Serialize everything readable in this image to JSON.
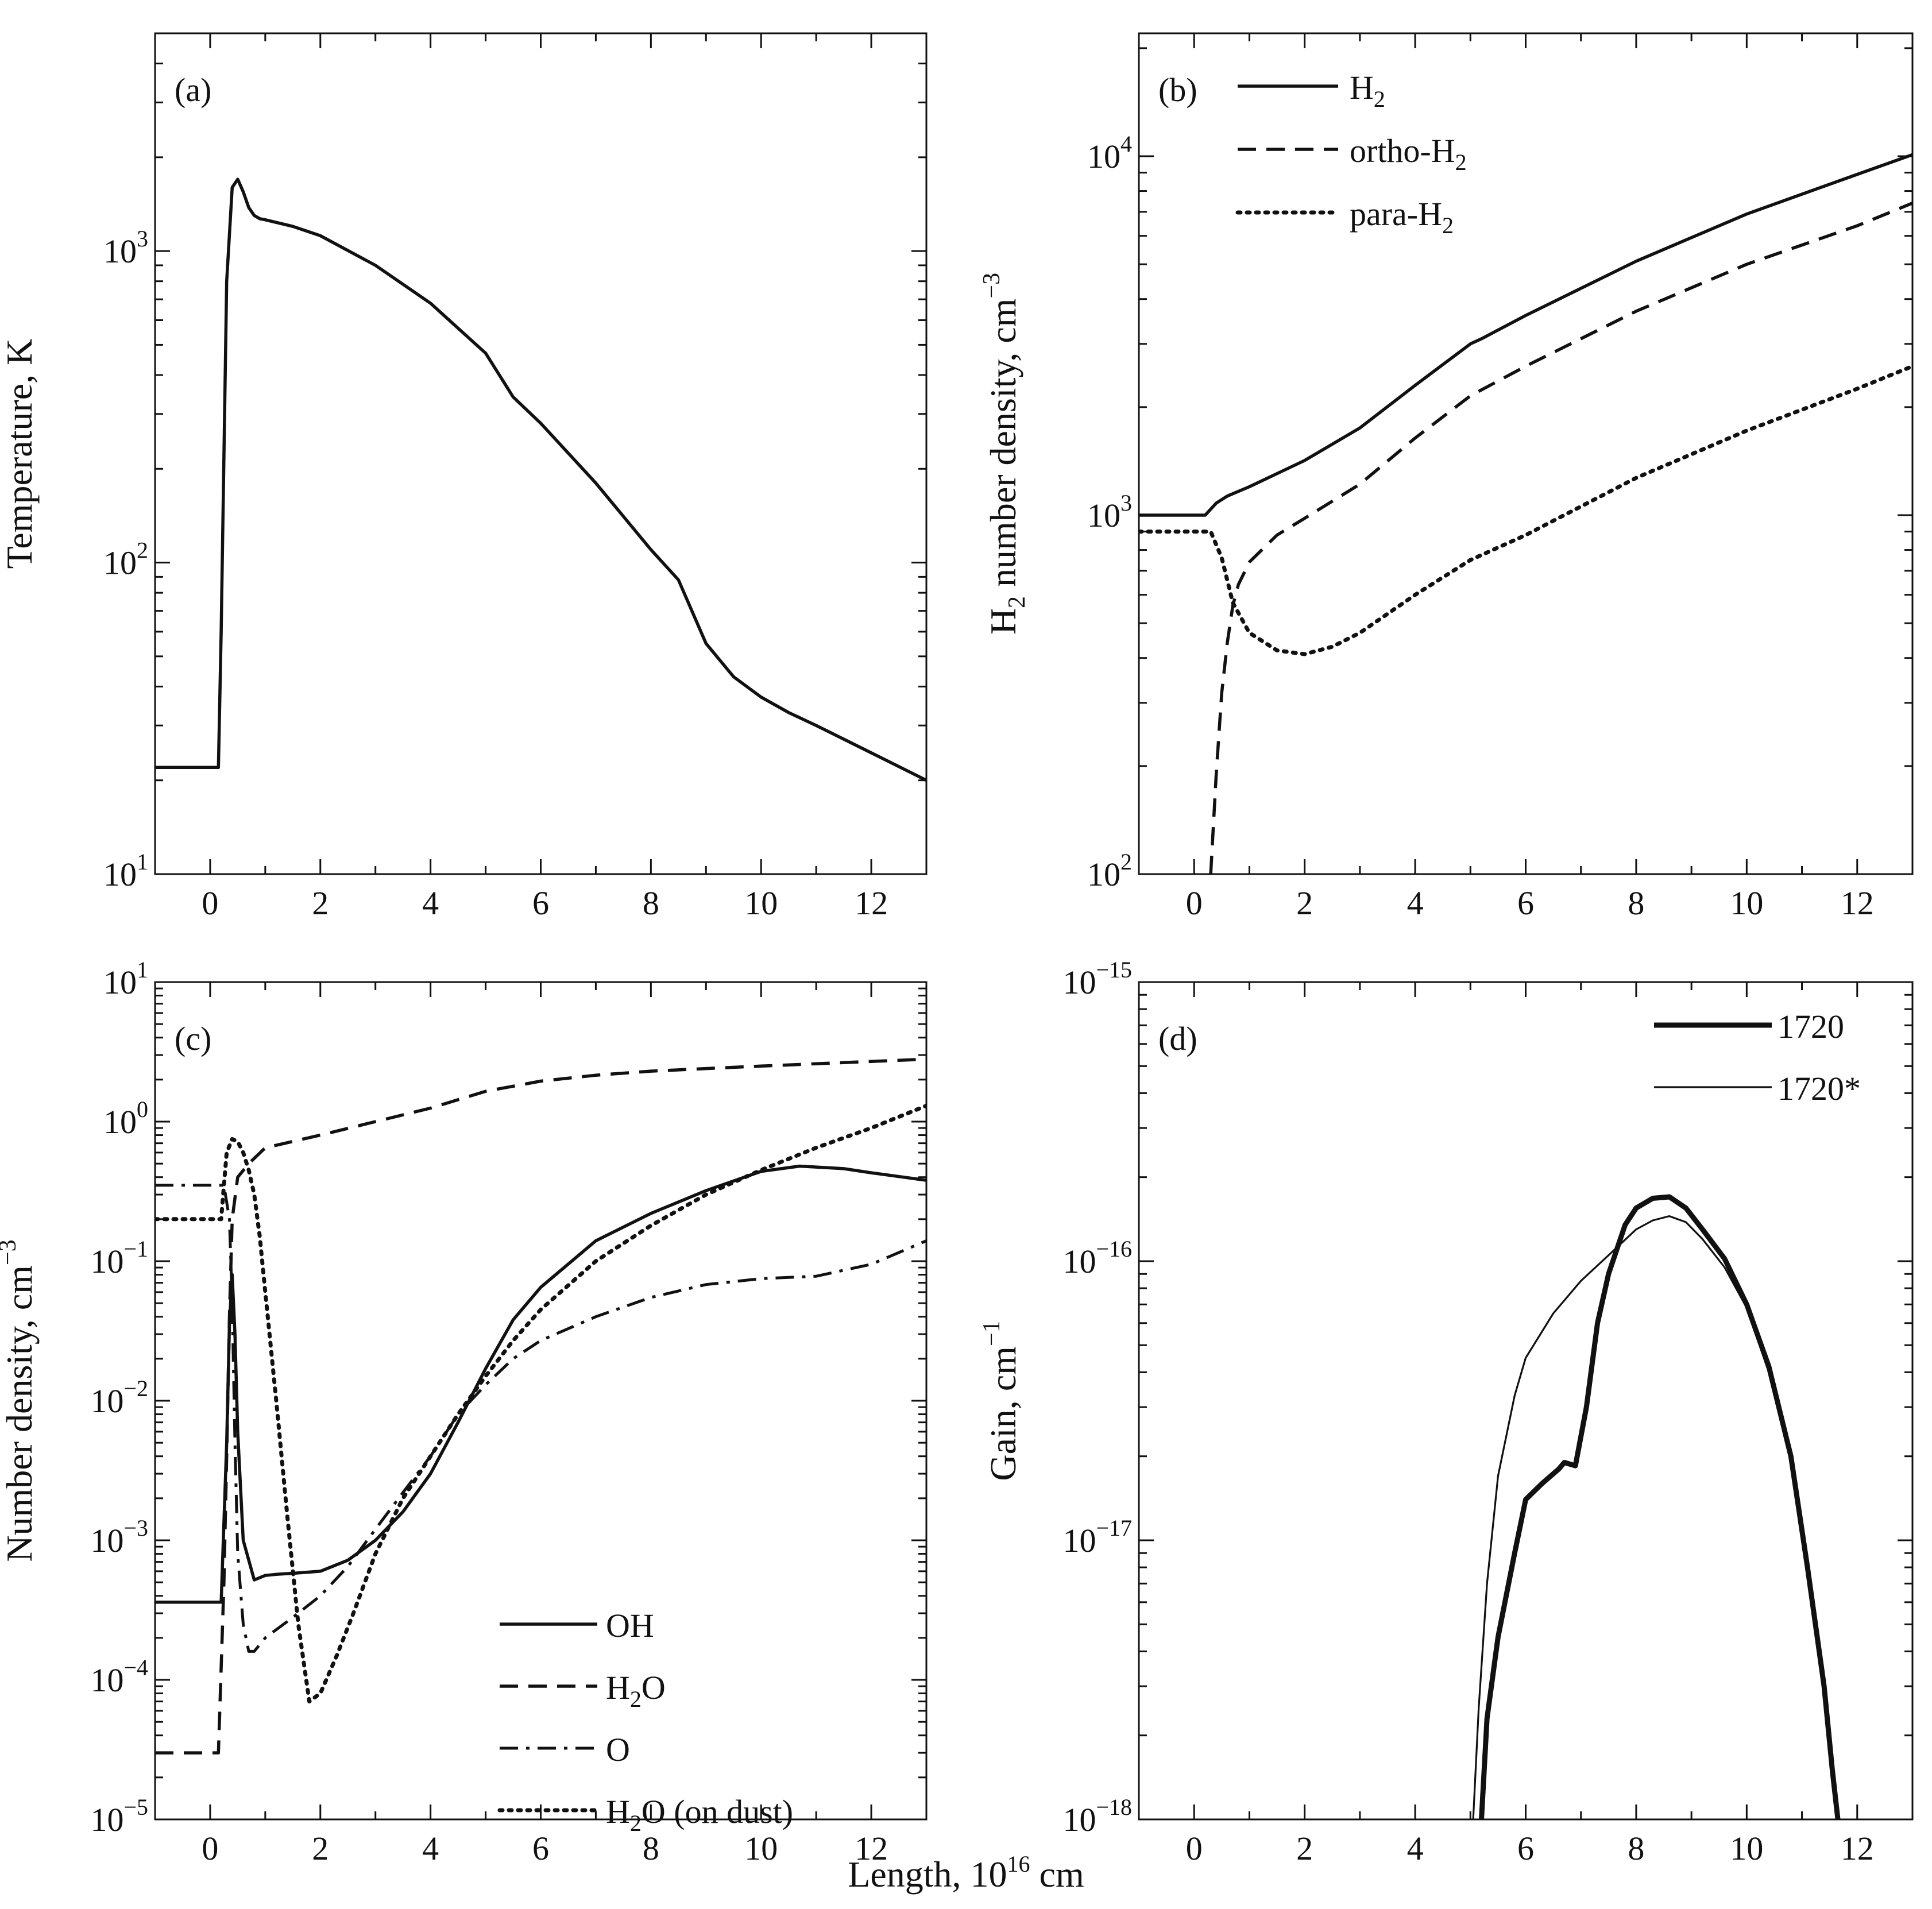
{
  "figure": {
    "xlabel_main": "Length, 10",
    "xlabel_sup": "16",
    "xlabel_unit": " cm"
  },
  "chart_data": [
    {
      "panel": "(a)",
      "type": "line",
      "yscale": "log",
      "xlim": [
        -1,
        13
      ],
      "ylim": [
        10,
        5000
      ],
      "xticks": [
        0,
        2,
        4,
        6,
        8,
        10,
        12
      ],
      "xtick_labels": [
        "0",
        "2",
        "4",
        "6",
        "8",
        "10",
        "12"
      ],
      "yticks": [
        10,
        100,
        1000
      ],
      "ytick_labels": [
        {
          "base": "10",
          "exp": "1"
        },
        {
          "base": "10",
          "exp": "2"
        },
        {
          "base": "10",
          "exp": "3"
        }
      ],
      "ylabel": {
        "pre": "Temperature, K",
        "sub": "",
        "post": "",
        "sup": ""
      },
      "legend": [],
      "series": [
        {
          "name": "Temperature",
          "style": "solid",
          "x": [
            -1,
            0.15,
            0.2,
            0.3,
            0.4,
            0.5,
            0.6,
            0.7,
            0.8,
            0.9,
            1.0,
            1.5,
            2.0,
            3.0,
            4.0,
            5.0,
            5.5,
            6.0,
            7.0,
            8.0,
            8.5,
            9.0,
            9.5,
            10.0,
            10.5,
            11.0,
            12.0,
            13.0
          ],
          "y": [
            22,
            22,
            60,
            800,
            1600,
            1700,
            1550,
            1380,
            1300,
            1270,
            1260,
            1200,
            1120,
            900,
            680,
            470,
            340,
            280,
            180,
            110,
            88,
            55,
            43,
            37,
            33,
            30,
            24.5,
            20
          ]
        }
      ]
    },
    {
      "panel": "(b)",
      "type": "line",
      "yscale": "log",
      "xlim": [
        -1,
        13
      ],
      "ylim": [
        100,
        22000
      ],
      "xticks": [
        0,
        2,
        4,
        6,
        8,
        10,
        12
      ],
      "xtick_labels": [
        "0",
        "2",
        "4",
        "6",
        "8",
        "10",
        "12"
      ],
      "yticks": [
        100,
        1000,
        10000
      ],
      "ytick_labels": [
        {
          "base": "10",
          "exp": "2"
        },
        {
          "base": "10",
          "exp": "3"
        },
        {
          "base": "10",
          "exp": "4"
        }
      ],
      "ylabel": {
        "pre": "H",
        "sub": "2",
        "post": " number density, cm",
        "sup": "−3"
      },
      "legend": [
        {
          "style": "solid",
          "pre": "H",
          "sub": "2",
          "post": ""
        },
        {
          "style": "dashed",
          "pre": "ortho-H",
          "sub": "2",
          "post": ""
        },
        {
          "style": "dotted",
          "pre": "para-H",
          "sub": "2",
          "post": ""
        }
      ],
      "series": [
        {
          "name": "H2",
          "style": "solid",
          "x": [
            -1,
            0.2,
            0.4,
            0.6,
            1.0,
            2.0,
            3.0,
            4.0,
            5.0,
            5.2,
            6.0,
            8.0,
            10.0,
            12.0,
            13.0
          ],
          "y": [
            1000,
            1000,
            1080,
            1130,
            1200,
            1420,
            1750,
            2300,
            3000,
            3100,
            3600,
            5100,
            6900,
            8900,
            10100
          ]
        },
        {
          "name": "ortho-H2",
          "style": "dashed",
          "x": [
            0.3,
            0.4,
            0.5,
            0.6,
            0.7,
            0.8,
            1.0,
            1.5,
            2.0,
            3.0,
            4.0,
            5.0,
            6.0,
            8.0,
            10.0,
            12.0,
            13.0
          ],
          "y": [
            100,
            190,
            320,
            440,
            560,
            640,
            740,
            880,
            980,
            1220,
            1640,
            2150,
            2600,
            3700,
            5000,
            6400,
            7400
          ]
        },
        {
          "name": "para-H2",
          "style": "dotted",
          "x": [
            -1,
            0.2,
            0.3,
            0.5,
            0.7,
            1.0,
            1.5,
            2.0,
            2.5,
            3.0,
            4.0,
            5.0,
            6.0,
            8.0,
            10.0,
            12.0,
            13.0
          ],
          "y": [
            900,
            900,
            900,
            760,
            570,
            470,
            420,
            410,
            430,
            470,
            600,
            750,
            880,
            1270,
            1720,
            2250,
            2600
          ]
        }
      ]
    },
    {
      "panel": "(c)",
      "type": "line",
      "yscale": "log",
      "xlim": [
        -1,
        13
      ],
      "ylim": [
        1e-05,
        10
      ],
      "xticks": [
        0,
        2,
        4,
        6,
        8,
        10,
        12
      ],
      "xtick_labels": [
        "0",
        "2",
        "4",
        "6",
        "8",
        "10",
        "12"
      ],
      "yticks": [
        1e-05,
        0.0001,
        0.001,
        0.01,
        0.1,
        1,
        10
      ],
      "ytick_labels": [
        {
          "base": "10",
          "exp": "−5"
        },
        {
          "base": "10",
          "exp": "−4"
        },
        {
          "base": "10",
          "exp": "−3"
        },
        {
          "base": "10",
          "exp": "−2"
        },
        {
          "base": "10",
          "exp": "−1"
        },
        {
          "base": "10",
          "exp": "0"
        },
        {
          "base": "10",
          "exp": "1"
        }
      ],
      "ylabel": {
        "pre": "Number density, cm",
        "sub": "",
        "post": "",
        "sup": "−3"
      },
      "legend": [
        {
          "style": "solid",
          "pre": "OH",
          "sub": "",
          "post": ""
        },
        {
          "style": "dashed",
          "pre": "H",
          "sub": "2",
          "post": "O"
        },
        {
          "style": "dashdot",
          "pre": "O",
          "sub": "",
          "post": ""
        },
        {
          "style": "dotted",
          "pre": "H",
          "sub": "2",
          "post": "O (on dust)"
        }
      ],
      "series": [
        {
          "name": "OH",
          "style": "solid",
          "x": [
            -1,
            0.2,
            0.3,
            0.35,
            0.4,
            0.45,
            0.5,
            0.6,
            0.8,
            1.0,
            1.2,
            1.5,
            2.0,
            2.5,
            3.0,
            3.5,
            4.0,
            4.5,
            5.0,
            5.5,
            6.0,
            7.0,
            8.0,
            9.0,
            10.0,
            10.7,
            11.5,
            12.0,
            13.0
          ],
          "y": [
            0.00036,
            0.00036,
            0.005,
            0.035,
            0.08,
            0.03,
            0.006,
            0.001,
            0.00052,
            0.00056,
            0.00057,
            0.00058,
            0.0006,
            0.00072,
            0.001,
            0.0016,
            0.003,
            0.007,
            0.017,
            0.038,
            0.065,
            0.14,
            0.22,
            0.32,
            0.44,
            0.48,
            0.46,
            0.43,
            0.38
          ]
        },
        {
          "name": "H2O",
          "style": "dashed",
          "x": [
            -1,
            0.15,
            0.25,
            0.3,
            0.35,
            0.4,
            0.5,
            0.7,
            1.0,
            2.0,
            3.0,
            4.0,
            5.0,
            6.0,
            7.0,
            8.0,
            9.0,
            10.0,
            11.0,
            12.0,
            13.0
          ],
          "y": [
            3e-05,
            3e-05,
            0.0005,
            0.004,
            0.04,
            0.2,
            0.4,
            0.5,
            0.65,
            0.8,
            1.0,
            1.25,
            1.65,
            1.95,
            2.15,
            2.3,
            2.4,
            2.5,
            2.6,
            2.7,
            2.8
          ]
        },
        {
          "name": "O",
          "style": "dashdot",
          "x": [
            -1,
            0.2,
            0.25,
            0.35,
            0.4,
            0.45,
            0.5,
            0.6,
            0.7,
            0.8,
            1.0,
            1.5,
            2.0,
            2.5,
            3.0,
            3.5,
            4.0,
            4.5,
            5.0,
            5.5,
            6.0,
            7.0,
            8.0,
            9.0,
            10.0,
            11.0,
            12.0,
            13.0
          ],
          "y": [
            0.35,
            0.35,
            0.35,
            0.2,
            0.05,
            0.005,
            0.0008,
            0.00025,
            0.00016,
            0.00016,
            0.0002,
            0.00028,
            0.0004,
            0.00065,
            0.0012,
            0.0022,
            0.004,
            0.008,
            0.013,
            0.02,
            0.027,
            0.04,
            0.055,
            0.068,
            0.075,
            0.078,
            0.095,
            0.14
          ]
        },
        {
          "name": "H2O (on dust)",
          "style": "dotted",
          "x": [
            -1,
            0.2,
            0.25,
            0.3,
            0.4,
            0.5,
            0.6,
            0.7,
            0.8,
            0.9,
            1.0,
            1.2,
            1.4,
            1.6,
            1.8,
            2.0,
            2.3,
            2.6,
            3.0,
            3.5,
            4.0,
            4.5,
            5.0,
            5.5,
            6.0,
            7.0,
            8.0,
            9.0,
            10.0,
            11.0,
            12.0,
            13.0
          ],
          "y": [
            0.2,
            0.2,
            0.35,
            0.6,
            0.75,
            0.72,
            0.6,
            0.45,
            0.3,
            0.15,
            0.06,
            0.01,
            0.0015,
            0.00025,
            7e-05,
            8e-05,
            0.00015,
            0.0003,
            0.0008,
            0.002,
            0.004,
            0.008,
            0.015,
            0.027,
            0.045,
            0.1,
            0.18,
            0.3,
            0.45,
            0.65,
            0.9,
            1.3
          ]
        }
      ]
    },
    {
      "panel": "(d)",
      "type": "line",
      "yscale": "log",
      "xlim": [
        -1,
        13
      ],
      "ylim": [
        1e-18,
        1e-15
      ],
      "xticks": [
        0,
        2,
        4,
        6,
        8,
        10,
        12
      ],
      "xtick_labels": [
        "0",
        "2",
        "4",
        "6",
        "8",
        "10",
        "12"
      ],
      "yticks": [
        1e-18,
        1e-17,
        1e-16,
        1e-15
      ],
      "ytick_labels": [
        {
          "base": "10",
          "exp": "−18"
        },
        {
          "base": "10",
          "exp": "−17"
        },
        {
          "base": "10",
          "exp": "−16"
        },
        {
          "base": "10",
          "exp": "−15"
        }
      ],
      "ylabel": {
        "pre": "Gain, cm",
        "sub": "",
        "post": "",
        "sup": "−1"
      },
      "legend": [
        {
          "style": "thick",
          "pre": "1720",
          "sub": "",
          "post": ""
        },
        {
          "style": "thin",
          "pre": "1720*",
          "sub": "",
          "post": ""
        }
      ],
      "series": [
        {
          "name": "1720",
          "style": "thick",
          "x": [
            5.2,
            5.3,
            5.5,
            5.8,
            6.0,
            6.3,
            6.6,
            6.7,
            6.9,
            7.1,
            7.3,
            7.5,
            7.8,
            8.0,
            8.3,
            8.6,
            8.9,
            9.2,
            9.6,
            10.0,
            10.4,
            10.8,
            11.1,
            11.4,
            11.55,
            11.65
          ],
          "y": [
            1e-18,
            2.3e-18,
            4.5e-18,
            9e-18,
            1.4e-17,
            1.6e-17,
            1.8e-17,
            1.9e-17,
            1.85e-17,
            3e-17,
            6e-17,
            9e-17,
            1.35e-16,
            1.55e-16,
            1.68e-16,
            1.7e-16,
            1.55e-16,
            1.3e-16,
            1.02e-16,
            7e-17,
            4.2e-17,
            2e-17,
            8e-18,
            3e-18,
            1.5e-18,
            1e-18
          ]
        },
        {
          "name": "1720*",
          "style": "thin",
          "x": [
            5.05,
            5.15,
            5.3,
            5.5,
            5.8,
            6.0,
            6.5,
            7.0,
            7.5,
            8.0,
            8.3,
            8.6,
            8.9,
            9.2,
            9.6,
            10.0,
            10.4,
            10.8,
            11.1,
            11.4,
            11.55,
            11.65
          ],
          "y": [
            1e-18,
            2.5e-18,
            7e-18,
            1.7e-17,
            3.3e-17,
            4.5e-17,
            6.5e-17,
            8.5e-17,
            1.05e-16,
            1.3e-16,
            1.4e-16,
            1.45e-16,
            1.38e-16,
            1.2e-16,
            9.5e-17,
            6.8e-17,
            4e-17,
            1.95e-17,
            8e-18,
            3e-18,
            1.5e-18,
            1e-18
          ]
        }
      ]
    }
  ]
}
